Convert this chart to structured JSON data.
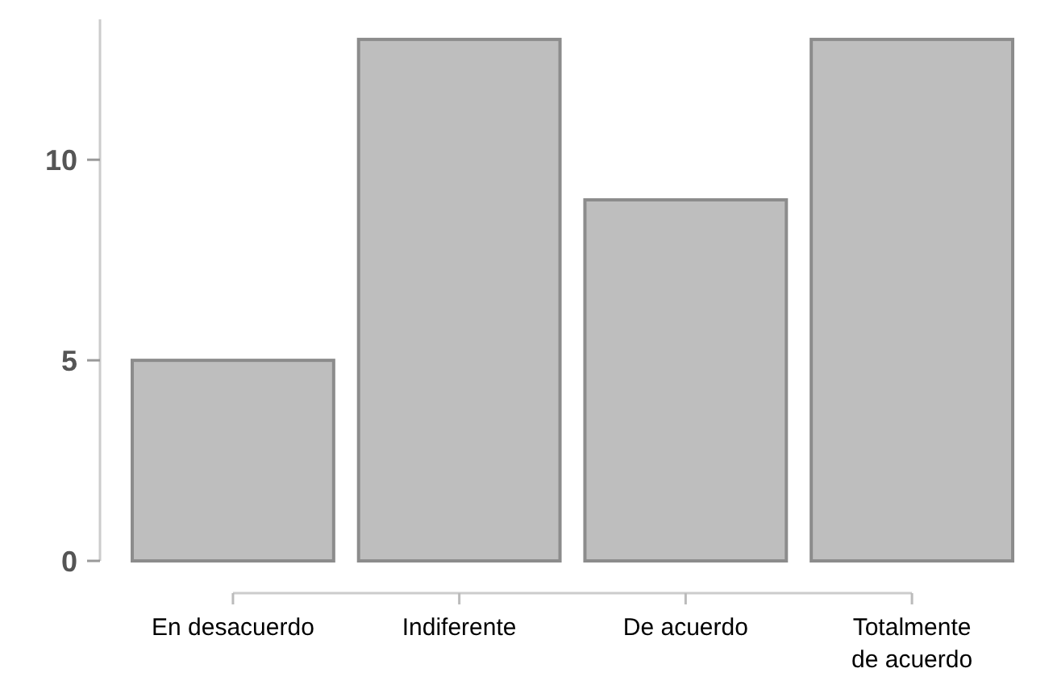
{
  "chart_data": {
    "type": "bar",
    "categories": [
      "En desacuerdo",
      "Indiferente",
      "De acuerdo",
      "Totalmente de acuerdo"
    ],
    "values": [
      5,
      13,
      9,
      13
    ],
    "color": "#bebebe",
    "ylim": [
      0,
      13.5
    ],
    "yticks": [
      0,
      5,
      10
    ],
    "grid": false
  }
}
